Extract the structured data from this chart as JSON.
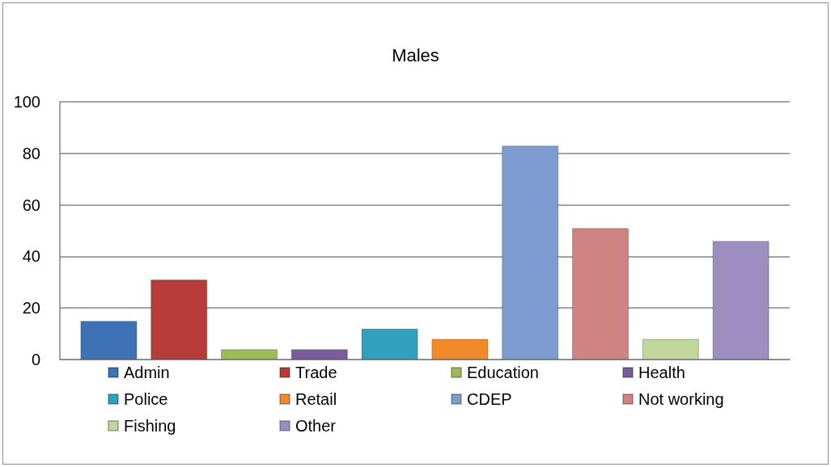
{
  "chart_data": {
    "type": "bar",
    "title": "Males",
    "categories": [
      null
    ],
    "series": [
      {
        "name": "Admin",
        "color": "#3e71b5",
        "values": [
          15
        ]
      },
      {
        "name": "Trade",
        "color": "#b83c38",
        "values": [
          31
        ]
      },
      {
        "name": "Education",
        "color": "#9bbb59",
        "values": [
          4
        ]
      },
      {
        "name": "Health",
        "color": "#7a5c9c",
        "values": [
          4
        ]
      },
      {
        "name": "Police",
        "color": "#2fa0bd",
        "values": [
          12
        ]
      },
      {
        "name": "Retail",
        "color": "#f08a2c",
        "values": [
          8
        ]
      },
      {
        "name": "CDEP",
        "color": "#7e9ccf",
        "values": [
          83
        ]
      },
      {
        "name": "Not working",
        "color": "#d08482",
        "values": [
          51
        ]
      },
      {
        "name": "Fishing",
        "color": "#c1d79b",
        "values": [
          8
        ]
      },
      {
        "name": "Other",
        "color": "#9d8ec0",
        "values": [
          46
        ]
      }
    ],
    "ylim": [
      0,
      100
    ],
    "yticks": [
      0,
      20,
      40,
      60,
      80,
      100
    ],
    "grid": "y",
    "legend": "bottom"
  }
}
